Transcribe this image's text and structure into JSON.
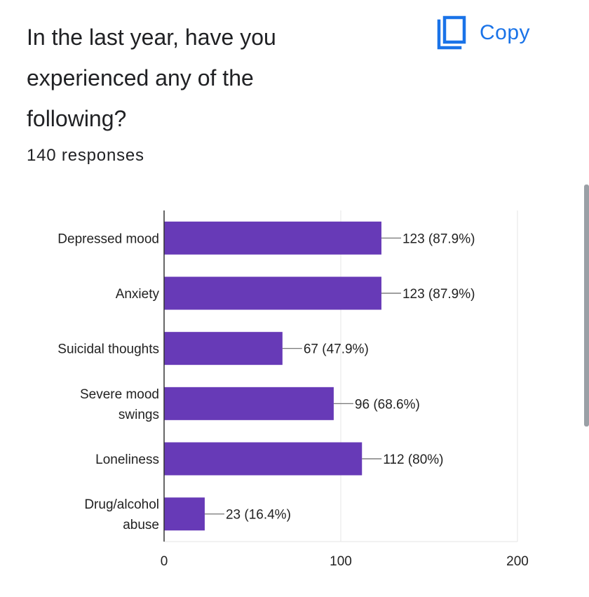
{
  "question": {
    "title": "In the last year, have you experienced any of the following?",
    "title_lines": [
      "In the last year, have you",
      "experienced any of the",
      "following?"
    ],
    "responses": "140 responses"
  },
  "toolbar": {
    "copy_label": "Copy",
    "copy_icon": "copy-icon"
  },
  "colors": {
    "bar": "#673ab7",
    "accent": "#1a73e8"
  },
  "chart_data": {
    "type": "bar",
    "orientation": "horizontal",
    "categories": [
      [
        "Depressed mood"
      ],
      [
        "Anxiety"
      ],
      [
        "Suicidal thoughts"
      ],
      [
        "Severe mood",
        "swings"
      ],
      [
        "Loneliness"
      ],
      [
        "Drug/alcohol",
        "abuse"
      ]
    ],
    "values": [
      123,
      123,
      67,
      96,
      112,
      23
    ],
    "data_labels": [
      "123 (87.9%)",
      "123 (87.9%)",
      "67 (47.9%)",
      "96 (68.6%)",
      "112 (80%)",
      "23 (16.4%)"
    ],
    "x_ticks": [
      0,
      100,
      200
    ],
    "xlim": [
      0,
      200
    ],
    "title": "",
    "xlabel": "",
    "ylabel": "",
    "grid": true,
    "legend": "none"
  }
}
